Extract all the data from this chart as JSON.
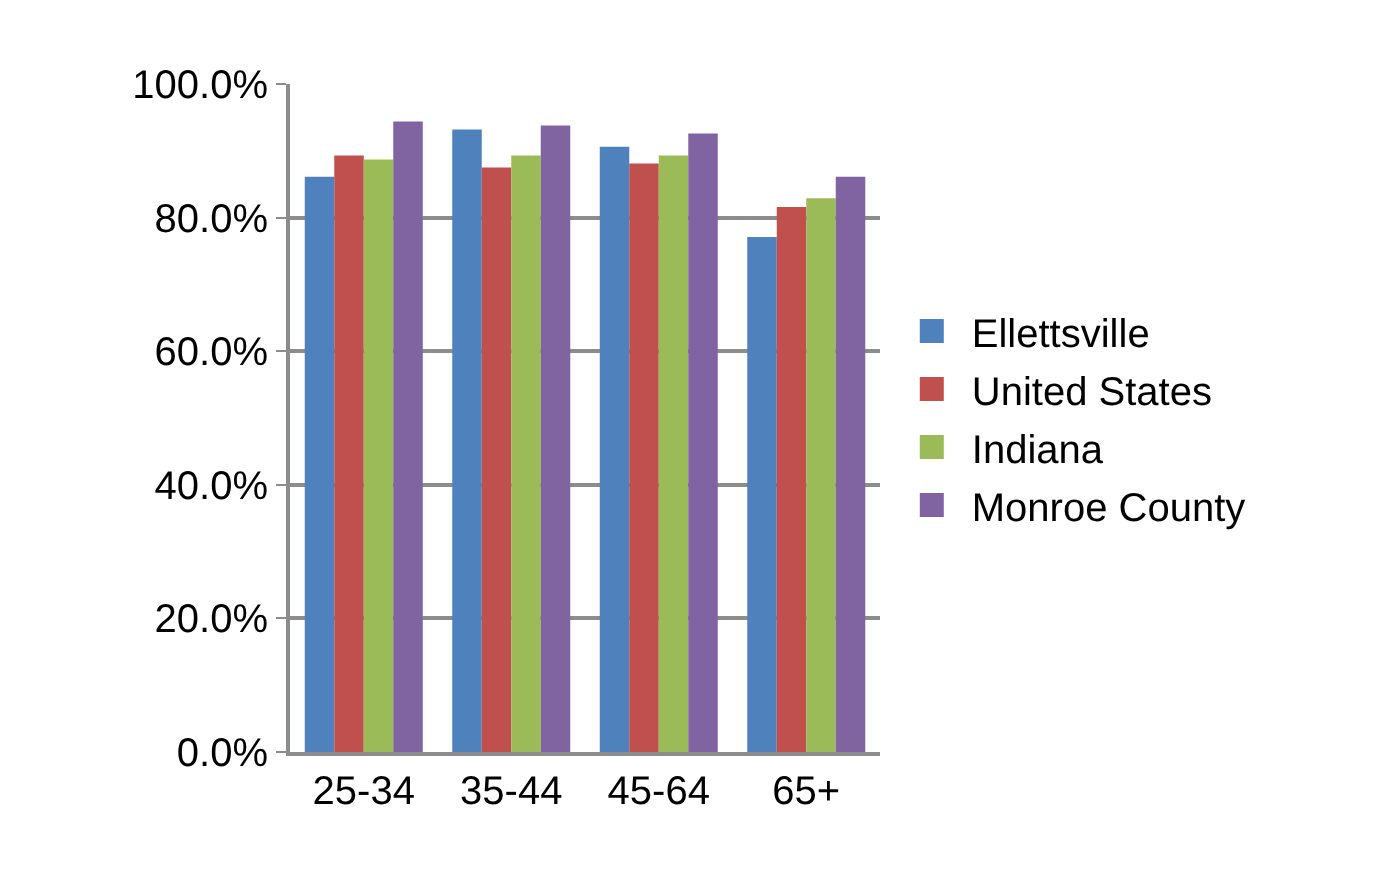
{
  "chart_data": {
    "type": "bar",
    "categories": [
      "25-34",
      "35-44",
      "45-64",
      "65+"
    ],
    "series": [
      {
        "name": "Ellettsville",
        "color": "#4f81bd",
        "values": [
          86.1,
          93.2,
          90.6,
          77.1
        ]
      },
      {
        "name": "United States",
        "color": "#c0504d",
        "values": [
          89.3,
          87.5,
          88.1,
          81.6
        ]
      },
      {
        "name": "Indiana",
        "color": "#9bbb59",
        "values": [
          88.7,
          89.3,
          89.3,
          82.9
        ]
      },
      {
        "name": "Monroe County",
        "color": "#8064a2",
        "values": [
          94.4,
          93.8,
          92.6,
          86.1
        ]
      }
    ],
    "ylim": [
      0,
      100
    ],
    "yticks": [
      {
        "value": 0,
        "label": "0.0%"
      },
      {
        "value": 20,
        "label": "20.0%"
      },
      {
        "value": 40,
        "label": "40.0%"
      },
      {
        "value": 60,
        "label": "60.0%"
      },
      {
        "value": 80,
        "label": "80.0%"
      },
      {
        "value": 100,
        "label": "100.0%"
      }
    ],
    "grid": "y",
    "legend": "right"
  }
}
